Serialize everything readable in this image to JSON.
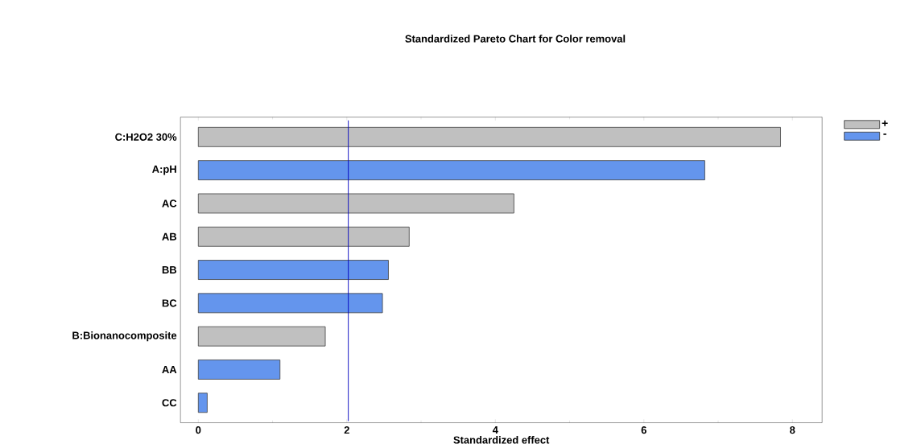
{
  "chart_data": {
    "type": "bar",
    "orientation": "horizontal",
    "title": "Standardized Pareto Chart for Color removal",
    "xlabel": "Standardized effect",
    "categories": [
      "C:H2O2 30%",
      "A:pH",
      "AC",
      "AB",
      "BB",
      "BC",
      "B:Bionanocomposite",
      "AA",
      "CC"
    ],
    "series": [
      {
        "name": "+",
        "color": "#c0c0c0",
        "values": [
          7.84,
          null,
          4.25,
          2.84,
          null,
          null,
          1.71,
          null,
          null
        ]
      },
      {
        "name": "-",
        "color": "#6495ed",
        "values": [
          null,
          6.82,
          null,
          null,
          2.56,
          2.48,
          null,
          1.1,
          0.12
        ]
      }
    ],
    "xlim": [
      -0.24,
      8.4
    ],
    "xticks": [
      0,
      2,
      4,
      6,
      8
    ],
    "ref_lines": [
      {
        "axis": "x",
        "value": 2.02,
        "color": "#0000c0"
      }
    ],
    "legend": "top right",
    "grid": false
  }
}
